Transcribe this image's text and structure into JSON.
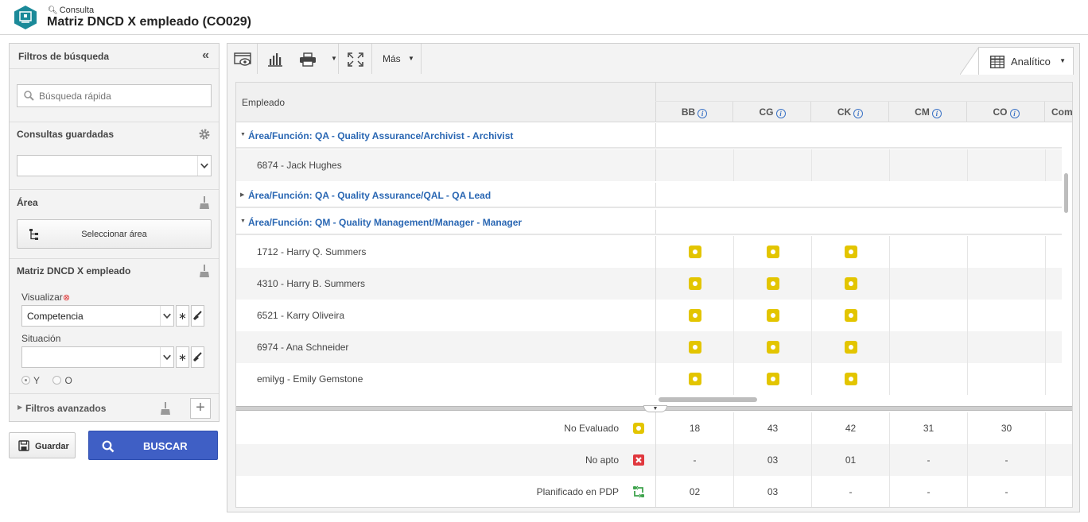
{
  "header": {
    "breadcrumb": "Consulta",
    "title": "Matriz DNCD X empleado (CO029)"
  },
  "filters": {
    "title": "Filtros de búsqueda",
    "quick_search_placeholder": "Búsqueda rápida",
    "saved_queries_label": "Consultas guardadas",
    "area_label": "Área",
    "select_area_label": "Seleccionar área",
    "matrix_label": "Matriz DNCD X empleado",
    "visualize_label": "Visualizar",
    "visualize_value": "Competencia",
    "situation_label": "Situación",
    "situation_value": "",
    "logic_and": "Y",
    "logic_or": "O",
    "advanced_label": "Filtros avanzados",
    "save_label": "Guardar",
    "search_label": "BUSCAR"
  },
  "toolbar": {
    "more_label": "Más",
    "view_tab_label": "Analítico"
  },
  "grid": {
    "employee_header": "Empleado",
    "columns": [
      "BB",
      "CG",
      "CK",
      "CM",
      "CO",
      "Com"
    ],
    "rows": [
      {
        "type": "group",
        "label": "Área/Función: QA - Quality Assurance/Archivist - Archivist",
        "expanded": true
      },
      {
        "type": "item",
        "label": "6874 - Jack Hughes",
        "status": [
          false,
          false,
          false,
          false,
          false
        ]
      },
      {
        "type": "group",
        "label": "Área/Función: QA - Quality Assurance/QAL - QA Lead",
        "expanded": false
      },
      {
        "type": "group",
        "label": "Área/Función: QM - Quality Management/Manager - Manager",
        "expanded": true
      },
      {
        "type": "item",
        "label": "1712 - Harry Q. Summers",
        "status": [
          true,
          true,
          true,
          false,
          false
        ]
      },
      {
        "type": "item",
        "label": "4310 - Harry B. Summers",
        "status": [
          true,
          true,
          true,
          false,
          false
        ]
      },
      {
        "type": "item",
        "label": "6521 - Karry Oliveira",
        "status": [
          true,
          true,
          true,
          false,
          false
        ]
      },
      {
        "type": "item",
        "label": "6974 - Ana Schneider",
        "status": [
          true,
          true,
          true,
          false,
          false
        ]
      },
      {
        "type": "item",
        "label": "emilyg - Emily Gemstone",
        "status": [
          true,
          true,
          true,
          false,
          false
        ]
      }
    ]
  },
  "summary": [
    {
      "label": "No Evaluado",
      "icon": "not-evaluated-icon",
      "values": [
        "18",
        "43",
        "42",
        "31",
        "30"
      ]
    },
    {
      "label": "No apto",
      "icon": "not-fit-icon",
      "values": [
        "-",
        "03",
        "01",
        "-",
        "-"
      ]
    },
    {
      "label": "Planificado en PDP",
      "icon": "planned-pdp-icon",
      "values": [
        "02",
        "03",
        "-",
        "-",
        "-"
      ]
    }
  ],
  "colors": {
    "accent_blue": "#3f5fc5",
    "group_text": "#2a67b3",
    "status_yellow": "#e3c500",
    "status_red": "#e0383e",
    "status_green": "#3fa34d",
    "logo_teal": "#1b8a99"
  }
}
